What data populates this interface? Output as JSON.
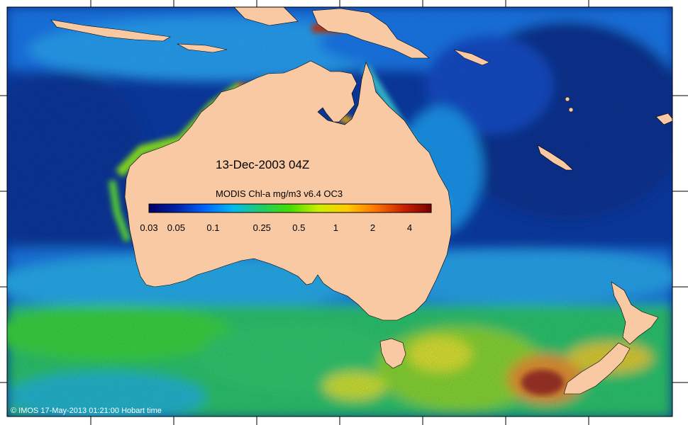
{
  "map": {
    "date_label": "13-Dec-2003 04Z",
    "credit": "© IMOS 17-May-2013 01:21:00 Hobart time"
  },
  "legend": {
    "title": "MODIS Chl-a mg/m3 v6.4 OC3",
    "scale": "log",
    "min": 0.03,
    "max": 6,
    "ticks": [
      "0.03",
      "0.05",
      "0.1",
      "0.25",
      "0.5",
      "1",
      "2",
      "4"
    ],
    "tick_values": [
      0.03,
      0.05,
      0.1,
      0.25,
      0.5,
      1,
      2,
      4
    ],
    "colors": [
      "#000066",
      "#0022aa",
      "#0066ff",
      "#00bbee",
      "#22cc66",
      "#44dd00",
      "#ccee00",
      "#ffcc00",
      "#ff7700",
      "#cc2200",
      "#770000"
    ]
  },
  "colors": {
    "land": "#f8c9a3",
    "ocean_deep": "#0b2a8c",
    "ocean_mid": "#1c6fd6",
    "ocean_cyan": "#27b5e0",
    "bloom_green": "#3ccc3c",
    "bloom_yellow": "#e8e51a",
    "bloom_orange": "#f08a1a",
    "bloom_red": "#b32a10"
  }
}
